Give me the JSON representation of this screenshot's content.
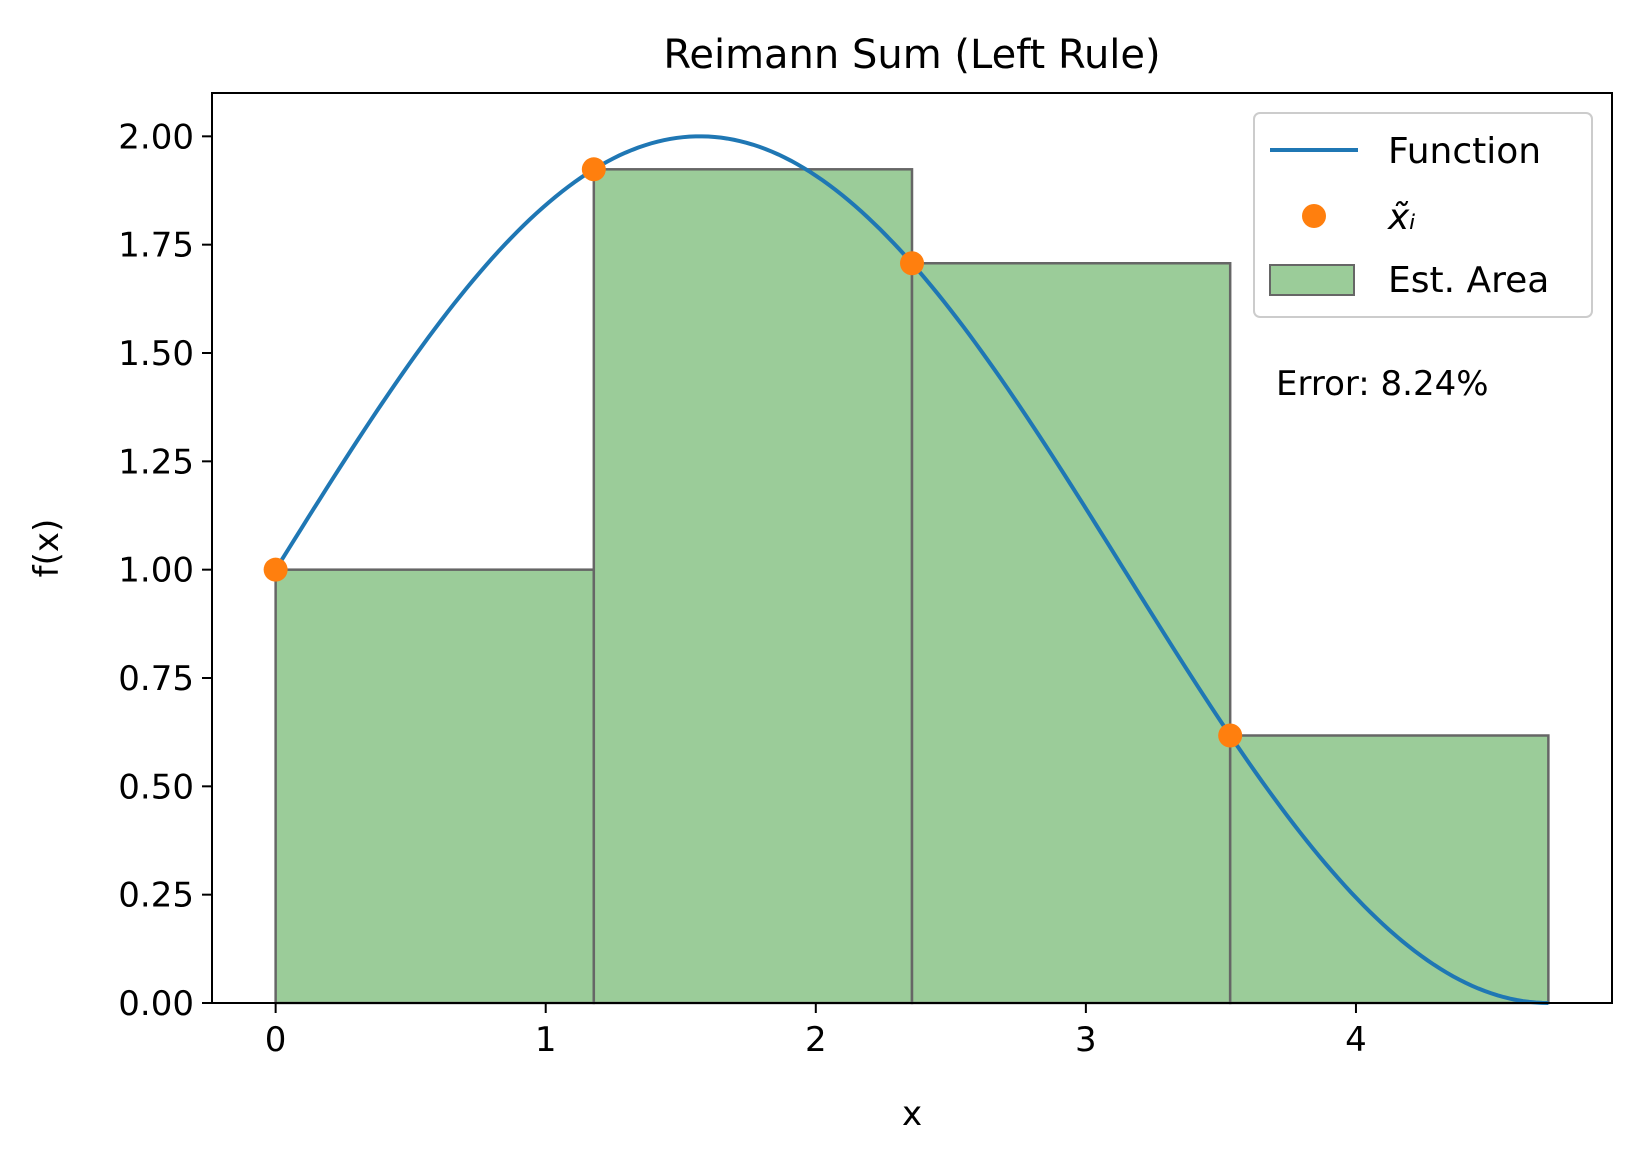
{
  "chart_data": {
    "type": "line",
    "title": "Reimann Sum (Left Rule)",
    "xlabel": "x",
    "ylabel": "f(x)",
    "xlim": [
      -0.2356,
      4.948
    ],
    "ylim": [
      0,
      2.1
    ],
    "xticks": [
      0,
      1,
      2,
      3,
      4
    ],
    "xtick_labels": [
      "0",
      "1",
      "2",
      "3",
      "4"
    ],
    "yticks": [
      0,
      0.25,
      0.5,
      0.75,
      1.0,
      1.25,
      1.5,
      1.75,
      2.0
    ],
    "ytick_labels": [
      "0.00",
      "0.25",
      "0.50",
      "0.75",
      "1.00",
      "1.25",
      "1.50",
      "1.75",
      "2.00"
    ],
    "grid": false,
    "legend_position": "top-right",
    "function": {
      "name": "Function",
      "color": "#1f77b4",
      "x_range": [
        0,
        4.7124
      ],
      "formula": "1 + sin(x)"
    },
    "sample_points": {
      "name": "x̃ᵢ",
      "color": "#ff7f0e",
      "x": [
        0,
        1.1781,
        2.3562,
        3.5343
      ],
      "y": [
        1.0,
        1.9239,
        1.7071,
        0.6173
      ]
    },
    "bars": {
      "name": "Est. Area",
      "color": "#9bcc99",
      "edge_color": "#666666",
      "left": [
        0,
        1.1781,
        2.3562,
        3.5343
      ],
      "width": 1.1781,
      "height": [
        1.0,
        1.9239,
        1.7071,
        0.6173
      ]
    },
    "annotation": "Error: 8.24%"
  }
}
